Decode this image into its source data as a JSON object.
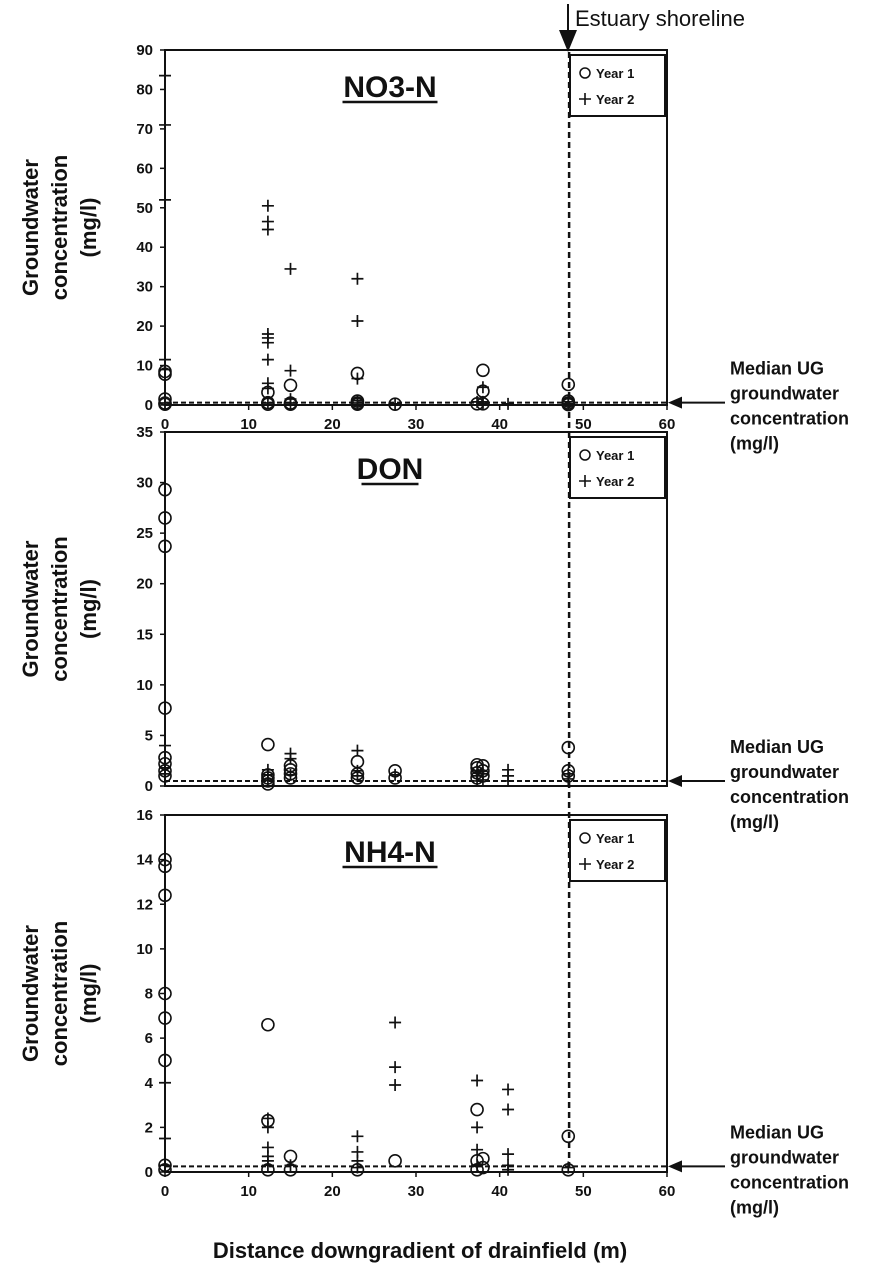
{
  "figure": {
    "shoreline_label": "Estuary shoreline",
    "xlabel": "Distance downgradient of drainfield (m)",
    "median_note_lines": [
      "Median UG",
      "groundwater",
      "concentration",
      "(mg/l)"
    ]
  },
  "chart_data": [
    {
      "type": "scatter",
      "title": "NO3-N",
      "ylabel_lines": [
        "Groundwater",
        "concentration",
        "(mg/l)"
      ],
      "xlabel": "",
      "xlim": [
        0,
        60
      ],
      "ylim": [
        0,
        90
      ],
      "x_ticks": [
        0,
        10,
        20,
        30,
        40,
        50,
        60
      ],
      "y_ticks": [
        0,
        10,
        20,
        30,
        40,
        50,
        60,
        70,
        80,
        90
      ],
      "grid": false,
      "legend_position": "top-right",
      "median_line": 0.6,
      "shoreline_x": 48.3,
      "series": [
        {
          "name": "Year 1",
          "marker": "circle",
          "points": [
            [
              0,
              8.5
            ],
            [
              0,
              7.8
            ],
            [
              0,
              1.5
            ],
            [
              0,
              0.5
            ],
            [
              0,
              0.2
            ],
            [
              12.3,
              3.2
            ],
            [
              12.3,
              0.6
            ],
            [
              12.3,
              0.2
            ],
            [
              15,
              5
            ],
            [
              15,
              0.5
            ],
            [
              15,
              0.2
            ],
            [
              23,
              8
            ],
            [
              23,
              1
            ],
            [
              23,
              0.5
            ],
            [
              23,
              0.2
            ],
            [
              27.5,
              0.2
            ],
            [
              37.3,
              0.3
            ],
            [
              38,
              8.8
            ],
            [
              38,
              3.5
            ],
            [
              38,
              0.3
            ],
            [
              48.2,
              5.2
            ],
            [
              48.2,
              1
            ],
            [
              48.2,
              0.5
            ],
            [
              48.2,
              0.1
            ]
          ]
        },
        {
          "name": "Year 2",
          "marker": "plus",
          "points": [
            [
              0,
              83.5
            ],
            [
              0,
              71
            ],
            [
              0,
              52
            ],
            [
              0,
              11.5
            ],
            [
              0,
              9
            ],
            [
              0,
              0.5
            ],
            [
              12.3,
              50.5
            ],
            [
              12.3,
              46.5
            ],
            [
              12.3,
              44.5
            ],
            [
              12.3,
              18
            ],
            [
              12.3,
              17
            ],
            [
              12.3,
              15.8
            ],
            [
              12.3,
              11.5
            ],
            [
              12.3,
              5.5
            ],
            [
              12.3,
              4.2
            ],
            [
              12.3,
              0.5
            ],
            [
              15,
              34.5
            ],
            [
              15,
              8.7
            ],
            [
              15,
              1.5
            ],
            [
              15,
              0.5
            ],
            [
              23,
              32
            ],
            [
              23,
              21.3
            ],
            [
              23,
              6.7
            ],
            [
              23,
              1.1
            ],
            [
              23,
              0.5
            ],
            [
              27.5,
              0.3
            ],
            [
              37.3,
              0.8
            ],
            [
              38,
              4.5
            ],
            [
              38,
              0.8
            ],
            [
              38,
              0.4
            ],
            [
              41,
              0.3
            ],
            [
              48.2,
              0.8
            ],
            [
              48.2,
              0.3
            ]
          ]
        }
      ]
    },
    {
      "type": "scatter",
      "title": "DON",
      "ylabel_lines": [
        "Groundwater",
        "concentration",
        "(mg/l)"
      ],
      "xlabel": "",
      "xlim": [
        0,
        60
      ],
      "ylim": [
        0,
        35
      ],
      "x_ticks": [],
      "y_ticks": [
        0,
        5,
        10,
        15,
        20,
        25,
        30,
        35
      ],
      "grid": false,
      "legend_position": "top-right",
      "median_line": 0.5,
      "shoreline_x": 48.3,
      "series": [
        {
          "name": "Year 1",
          "marker": "circle",
          "points": [
            [
              0,
              29.3
            ],
            [
              0,
              26.5
            ],
            [
              0,
              23.7
            ],
            [
              0,
              7.7
            ],
            [
              0,
              2.8
            ],
            [
              0,
              2.2
            ],
            [
              0,
              1.5
            ],
            [
              0,
              1
            ],
            [
              12.3,
              4.1
            ],
            [
              12.3,
              1.1
            ],
            [
              12.3,
              0.8
            ],
            [
              12.3,
              0.5
            ],
            [
              12.3,
              0.2
            ],
            [
              15,
              2
            ],
            [
              15,
              1.6
            ],
            [
              15,
              1.2
            ],
            [
              15,
              0.8
            ],
            [
              23,
              2.4
            ],
            [
              23,
              1.2
            ],
            [
              23,
              0.8
            ],
            [
              27.5,
              1.5
            ],
            [
              27.5,
              0.8
            ],
            [
              37.3,
              2.1
            ],
            [
              37.3,
              1.8
            ],
            [
              37.3,
              1.3
            ],
            [
              37.3,
              0.8
            ],
            [
              38,
              2
            ],
            [
              38,
              1.5
            ],
            [
              38,
              1
            ],
            [
              48.2,
              3.8
            ],
            [
              48.2,
              1.5
            ],
            [
              48.2,
              1
            ]
          ]
        },
        {
          "name": "Year 2",
          "marker": "plus",
          "points": [
            [
              0,
              4
            ],
            [
              0,
              1.8
            ],
            [
              0,
              1.2
            ],
            [
              12.3,
              1.6
            ],
            [
              12.3,
              1.1
            ],
            [
              12.3,
              0.6
            ],
            [
              15,
              3.2
            ],
            [
              15,
              2.7
            ],
            [
              15,
              1.1
            ],
            [
              23,
              3.5
            ],
            [
              23,
              1.5
            ],
            [
              23,
              1
            ],
            [
              27.5,
              1.1
            ],
            [
              37.3,
              1.5
            ],
            [
              37.3,
              1
            ],
            [
              37.3,
              0.5
            ],
            [
              38,
              1.2
            ],
            [
              38,
              0.6
            ],
            [
              41,
              1.6
            ],
            [
              41,
              1
            ],
            [
              41,
              0.5
            ],
            [
              48.2,
              1.2
            ],
            [
              48.2,
              0.7
            ]
          ]
        }
      ]
    },
    {
      "type": "scatter",
      "title": "NH4-N",
      "ylabel_lines": [
        "Groundwater",
        "concentration",
        "(mg/l)"
      ],
      "xlabel": "Distance downgradient of drainfield (m)",
      "xlim": [
        0,
        60
      ],
      "ylim": [
        0,
        16
      ],
      "x_ticks": [
        0,
        10,
        20,
        30,
        40,
        50,
        60
      ],
      "y_ticks": [
        0,
        2,
        4,
        6,
        8,
        10,
        12,
        14,
        16
      ],
      "grid": false,
      "legend_position": "top-right",
      "median_line": 0.25,
      "shoreline_x": 48.3,
      "series": [
        {
          "name": "Year 1",
          "marker": "circle",
          "points": [
            [
              0,
              14
            ],
            [
              0,
              13.7
            ],
            [
              0,
              12.4
            ],
            [
              0,
              8
            ],
            [
              0,
              6.9
            ],
            [
              0,
              5
            ],
            [
              0,
              0.3
            ],
            [
              0,
              0.1
            ],
            [
              12.3,
              6.6
            ],
            [
              12.3,
              2.3
            ],
            [
              12.3,
              0.1
            ],
            [
              15,
              0.7
            ],
            [
              15,
              0.1
            ],
            [
              23,
              0.1
            ],
            [
              27.5,
              0.5
            ],
            [
              37.3,
              2.8
            ],
            [
              37.3,
              0.5
            ],
            [
              37.3,
              0.1
            ],
            [
              38,
              0.6
            ],
            [
              38,
              0.2
            ],
            [
              48.2,
              1.6
            ],
            [
              48.2,
              0.1
            ]
          ]
        },
        {
          "name": "Year 2",
          "marker": "plus",
          "points": [
            [
              0,
              4
            ],
            [
              0,
              1.5
            ],
            [
              0,
              0.3
            ],
            [
              12.3,
              2.4
            ],
            [
              12.3,
              2
            ],
            [
              12.3,
              1.1
            ],
            [
              12.3,
              0.7
            ],
            [
              12.3,
              0.5
            ],
            [
              12.3,
              0.3
            ],
            [
              15,
              0.3
            ],
            [
              23,
              1.6
            ],
            [
              23,
              0.9
            ],
            [
              23,
              0.5
            ],
            [
              23,
              0.2
            ],
            [
              27.5,
              6.7
            ],
            [
              27.5,
              4.7
            ],
            [
              27.5,
              3.9
            ],
            [
              37.3,
              4.1
            ],
            [
              37.3,
              2
            ],
            [
              37.3,
              1
            ],
            [
              37.3,
              0.3
            ],
            [
              41,
              3.7
            ],
            [
              41,
              2.8
            ],
            [
              41,
              0.8
            ],
            [
              41,
              0.3
            ],
            [
              41,
              0.1
            ],
            [
              48.2,
              0.2
            ]
          ]
        }
      ]
    }
  ]
}
